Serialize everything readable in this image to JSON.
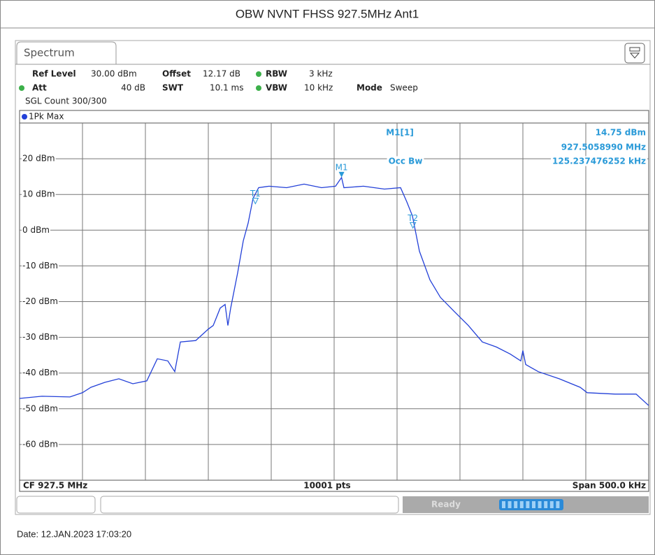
{
  "header": {
    "title": "OBW NVNT FHSS 927.5MHz Ant1"
  },
  "tab": "Spectrum",
  "settings": {
    "ref_level_label": "Ref Level",
    "ref_level": "30.00 dBm",
    "offset_label": "Offset",
    "offset": "12.17 dB",
    "rbw_label": "RBW",
    "rbw": "3 kHz",
    "att_label": "Att",
    "att": "40 dB",
    "swt_label": "SWT",
    "swt": "10.1 ms",
    "vbw_label": "VBW",
    "vbw": "10 kHz",
    "mode_label": "Mode",
    "mode": "Sweep",
    "count": "SGL Count 300/300"
  },
  "chart_data": {
    "type": "line",
    "trace_label": "1Pk Max",
    "xlim": [
      927.25,
      927.75
    ],
    "ylim": [
      -70,
      30
    ],
    "yticks": [
      {
        "value": 20,
        "label": "20 dBm"
      },
      {
        "value": 10,
        "label": "10 dBm"
      },
      {
        "value": 0,
        "label": "0 dBm"
      },
      {
        "value": -10,
        "label": "-10 dBm"
      },
      {
        "value": -20,
        "label": "-20 dBm"
      },
      {
        "value": -30,
        "label": "-30 dBm"
      },
      {
        "value": -40,
        "label": "-40 dBm"
      },
      {
        "value": -50,
        "label": "-50 dBm"
      },
      {
        "value": -60,
        "label": "-60 dBm"
      }
    ],
    "grid": true,
    "series": [
      {
        "name": "1Pk Max",
        "color": "#2340d8",
        "x": [
          927.25,
          927.26778,
          927.29,
          927.3,
          927.30667,
          927.31778,
          927.32889,
          927.34,
          927.35111,
          927.35944,
          927.36778,
          927.37333,
          927.37778,
          927.39,
          927.4,
          927.40389,
          927.40944,
          927.41333,
          927.41556,
          927.41778,
          927.42333,
          927.42778,
          927.43167,
          927.43556,
          927.44,
          927.44833,
          927.46222,
          927.47611,
          927.49,
          927.50111,
          927.505899,
          927.50778,
          927.52333,
          927.54,
          927.55278,
          927.55778,
          927.56222,
          927.56778,
          927.57611,
          927.58444,
          927.59556,
          927.60667,
          927.61778,
          927.62889,
          927.64,
          927.64833,
          927.65,
          927.65222,
          927.66222,
          927.67889,
          927.69556,
          927.70111,
          927.72333,
          927.74,
          927.75
        ],
        "values": [
          -47.1,
          -46.5,
          -46.7,
          -45.5,
          -44,
          -42.6,
          -41.6,
          -43,
          -42.2,
          -36,
          -36.6,
          -39.6,
          -31.3,
          -30.9,
          -27.7,
          -26.7,
          -21.8,
          -20.8,
          -26.7,
          -21.8,
          -11.9,
          -3,
          2,
          8.9,
          11.9,
          12.3,
          11.9,
          12.9,
          11.9,
          12.3,
          14.75,
          11.9,
          12.3,
          11.5,
          11.9,
          7.9,
          4,
          -5.9,
          -13.9,
          -18.8,
          -22.8,
          -26.7,
          -31.3,
          -32.7,
          -34.7,
          -36.6,
          -33.7,
          -37.6,
          -39.6,
          -41.6,
          -44,
          -45.5,
          -45.9,
          -45.9,
          -49.1
        ]
      }
    ],
    "marker": {
      "label": "M1",
      "name": "M1[1]",
      "value": 14.75,
      "value_label": "14.75 dBm",
      "x": 927.505899,
      "x_label": "927.5058990 MHz"
    },
    "occ_bw": {
      "label": "Occ Bw",
      "value_label": "125.237476252 kHz"
    },
    "temp_markers": [
      {
        "label": "T1",
        "x": 927.4374
      },
      {
        "label": "T2",
        "x": 927.5626
      }
    ],
    "cf": "CF 927.5 MHz",
    "points": "10001 pts",
    "span": "Span 500.0 kHz"
  },
  "status": "Ready",
  "footer": {
    "date": "Date: 12.JAN.2023  17:03:20"
  }
}
